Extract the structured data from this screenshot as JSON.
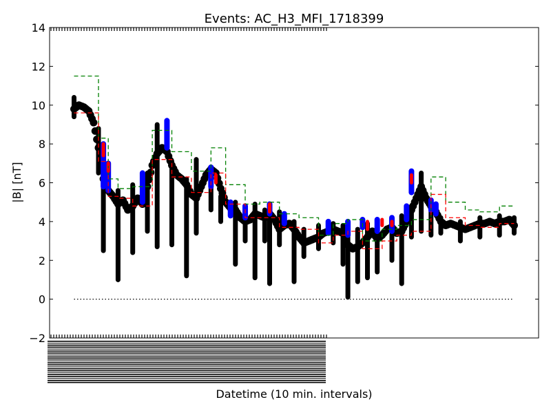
{
  "chart_data": {
    "type": "scatter",
    "title": "Events: AC_H3_MFI_1718399",
    "xlabel": "Datetime (10 min. intervals)",
    "ylabel": "|B| [nT]",
    "ylim": [
      -2,
      14
    ],
    "yticks": [
      -2,
      0,
      2,
      4,
      6,
      8,
      10,
      12,
      14
    ],
    "ytick_labels": [
      "−2",
      "0",
      "2",
      "4",
      "6",
      "8",
      "10",
      "12",
      "14"
    ],
    "xlim": [
      0,
      100
    ],
    "grid": false,
    "colors": {
      "data": "#000000",
      "highlight_blue": "#0000ff",
      "highlight_red": "#ff0000",
      "mean": "#ff0000",
      "threshold": "#008000",
      "zero": "#000000"
    },
    "series": [
      {
        "points": [
          [
            5,
            9.8
          ],
          [
            6,
            10.0
          ],
          [
            7,
            9.9
          ],
          [
            8,
            9.7
          ],
          [
            9,
            9.1
          ],
          [
            10,
            7.8
          ],
          [
            11,
            6.2
          ],
          [
            12,
            5.6
          ],
          [
            13,
            5.3
          ],
          [
            14,
            4.9
          ],
          [
            15,
            5.1
          ],
          [
            16,
            4.6
          ],
          [
            17,
            4.8
          ],
          [
            18,
            5.2
          ],
          [
            19,
            4.9
          ],
          [
            20,
            5.8
          ],
          [
            21,
            6.9
          ],
          [
            22,
            7.5
          ],
          [
            23,
            7.8
          ],
          [
            24,
            7.6
          ],
          [
            25,
            6.9
          ],
          [
            26,
            6.4
          ],
          [
            27,
            6.2
          ],
          [
            28,
            5.9
          ],
          [
            29,
            5.4
          ],
          [
            30,
            5.2
          ],
          [
            31,
            5.8
          ],
          [
            32,
            6.4
          ],
          [
            33,
            6.7
          ],
          [
            34,
            6.5
          ],
          [
            35,
            5.7
          ],
          [
            36,
            5.0
          ],
          [
            37,
            4.7
          ],
          [
            38,
            4.6
          ],
          [
            39,
            4.2
          ],
          [
            40,
            4.0
          ],
          [
            41,
            4.1
          ],
          [
            42,
            4.4
          ],
          [
            43,
            4.3
          ],
          [
            44,
            4.2
          ],
          [
            45,
            4.4
          ],
          [
            46,
            4.1
          ],
          [
            47,
            3.6
          ],
          [
            48,
            3.8
          ],
          [
            49,
            3.9
          ],
          [
            50,
            3.6
          ],
          [
            51,
            3.2
          ],
          [
            52,
            2.9
          ],
          [
            53,
            3.0
          ],
          [
            54,
            3.1
          ],
          [
            55,
            3.2
          ],
          [
            56,
            3.4
          ],
          [
            57,
            3.5
          ],
          [
            58,
            3.6
          ],
          [
            59,
            3.5
          ],
          [
            60,
            3.4
          ],
          [
            61,
            2.8
          ],
          [
            62,
            2.6
          ],
          [
            63,
            2.7
          ],
          [
            64,
            2.9
          ],
          [
            65,
            3.2
          ],
          [
            66,
            3.5
          ],
          [
            67,
            3.1
          ],
          [
            68,
            3.3
          ],
          [
            69,
            3.6
          ],
          [
            70,
            3.7
          ],
          [
            71,
            3.4
          ],
          [
            72,
            3.5
          ],
          [
            73,
            4.0
          ],
          [
            74,
            4.6
          ],
          [
            75,
            5.2
          ],
          [
            76,
            5.8
          ],
          [
            77,
            5.2
          ],
          [
            78,
            4.8
          ],
          [
            79,
            4.5
          ],
          [
            80,
            4.0
          ],
          [
            81,
            3.8
          ],
          [
            82,
            3.9
          ],
          [
            83,
            3.8
          ],
          [
            84,
            3.7
          ],
          [
            85,
            3.6
          ],
          [
            86,
            3.7
          ],
          [
            87,
            3.8
          ],
          [
            88,
            3.9
          ],
          [
            89,
            3.9
          ],
          [
            90,
            4.0
          ],
          [
            91,
            3.9
          ],
          [
            92,
            4.0
          ],
          [
            93,
            4.0
          ],
          [
            94,
            4.1
          ],
          [
            95,
            3.8
          ]
        ],
        "spread": [
          [
            5,
            9.4,
            10.4
          ],
          [
            10,
            6.5,
            8.8
          ],
          [
            11,
            2.5,
            7.2
          ],
          [
            14,
            1.0,
            5.6
          ],
          [
            17,
            2.4,
            5.9
          ],
          [
            20,
            3.5,
            6.5
          ],
          [
            22,
            2.7,
            9.0
          ],
          [
            25,
            2.8,
            7.1
          ],
          [
            28,
            1.2,
            6.2
          ],
          [
            30,
            3.4,
            7.2
          ],
          [
            33,
            4.6,
            6.8
          ],
          [
            35,
            4.0,
            5.3
          ],
          [
            38,
            1.8,
            5.0
          ],
          [
            40,
            3.0,
            4.8
          ],
          [
            42,
            1.1,
            4.9
          ],
          [
            44,
            3.0,
            4.6
          ],
          [
            45,
            0.8,
            4.8
          ],
          [
            47,
            2.8,
            4.5
          ],
          [
            50,
            0.9,
            4.0
          ],
          [
            52,
            2.2,
            3.6
          ],
          [
            55,
            2.6,
            3.8
          ],
          [
            58,
            2.9,
            3.9
          ],
          [
            60,
            1.8,
            3.8
          ],
          [
            61,
            0.1,
            3.9
          ],
          [
            63,
            0.9,
            3.6
          ],
          [
            65,
            1.1,
            3.9
          ],
          [
            67,
            1.4,
            3.8
          ],
          [
            70,
            2.0,
            4.1
          ],
          [
            72,
            0.8,
            4.3
          ],
          [
            74,
            3.2,
            4.8
          ],
          [
            76,
            3.5,
            6.5
          ],
          [
            78,
            3.3,
            5.0
          ],
          [
            80,
            3.4,
            4.2
          ],
          [
            84,
            3.0,
            4.0
          ],
          [
            88,
            3.2,
            4.2
          ],
          [
            92,
            3.3,
            4.3
          ],
          [
            95,
            3.4,
            4.2
          ]
        ]
      },
      {
        "highlight_blue_ranges": [
          [
            11,
            5.8,
            8.0
          ],
          [
            12,
            5.6,
            7.0
          ],
          [
            19,
            5.0,
            6.5
          ],
          [
            24,
            7.8,
            9.2
          ],
          [
            33,
            5.8,
            6.8
          ],
          [
            37,
            4.3,
            5.0
          ],
          [
            40,
            4.2,
            4.8
          ],
          [
            45,
            4.4,
            4.9
          ],
          [
            48,
            3.9,
            4.4
          ],
          [
            57,
            3.4,
            4.0
          ],
          [
            61,
            3.3,
            4.0
          ],
          [
            64,
            3.7,
            4.1
          ],
          [
            67,
            3.5,
            4.1
          ],
          [
            70,
            3.5,
            4.2
          ],
          [
            73,
            4.1,
            4.8
          ],
          [
            74,
            5.5,
            6.6
          ],
          [
            78,
            4.6,
            5.1
          ],
          [
            79,
            4.4,
            4.9
          ]
        ],
        "highlight_red_ranges": [
          [
            11,
            7.4,
            8.0
          ],
          [
            12,
            6.6,
            7.0
          ],
          [
            34,
            6.0,
            6.4
          ],
          [
            45,
            4.5,
            4.9
          ],
          [
            65,
            3.6,
            4.0
          ],
          [
            68,
            3.8,
            4.1
          ],
          [
            70,
            3.8,
            4.0
          ],
          [
            74,
            6.0,
            6.4
          ]
        ]
      }
    ],
    "mean_steps": [
      [
        5,
        10,
        9.6
      ],
      [
        10,
        12,
        7.1
      ],
      [
        12,
        14,
        5.3
      ],
      [
        14,
        17,
        5.2
      ],
      [
        17,
        21,
        4.8
      ],
      [
        21,
        25,
        7.2
      ],
      [
        25,
        29,
        6.3
      ],
      [
        29,
        33,
        5.5
      ],
      [
        33,
        36,
        6.5
      ],
      [
        36,
        40,
        4.9
      ],
      [
        40,
        43,
        4.2
      ],
      [
        43,
        47,
        4.2
      ],
      [
        47,
        51,
        3.7
      ],
      [
        51,
        55,
        3.6
      ],
      [
        55,
        58,
        2.9
      ],
      [
        58,
        61,
        3.3
      ],
      [
        61,
        64,
        3.5
      ],
      [
        64,
        68,
        2.6
      ],
      [
        68,
        71,
        3.0
      ],
      [
        71,
        74,
        3.3
      ],
      [
        74,
        78,
        3.5
      ],
      [
        78,
        81,
        5.4
      ],
      [
        81,
        85,
        4.2
      ],
      [
        85,
        88,
        3.8
      ],
      [
        88,
        92,
        3.7
      ],
      [
        92,
        95,
        3.9
      ]
    ],
    "threshold_steps": [
      [
        5,
        10,
        11.5
      ],
      [
        10,
        12,
        8.3
      ],
      [
        12,
        14,
        6.2
      ],
      [
        14,
        17,
        5.7
      ],
      [
        17,
        21,
        5.8
      ],
      [
        21,
        25,
        8.7
      ],
      [
        25,
        29,
        7.6
      ],
      [
        29,
        33,
        6.6
      ],
      [
        33,
        36,
        7.8
      ],
      [
        36,
        40,
        5.9
      ],
      [
        40,
        43,
        4.9
      ],
      [
        43,
        47,
        5.0
      ],
      [
        47,
        51,
        4.4
      ],
      [
        51,
        55,
        4.2
      ],
      [
        55,
        58,
        3.3
      ],
      [
        58,
        61,
        3.9
      ],
      [
        61,
        64,
        4.1
      ],
      [
        64,
        68,
        3.0
      ],
      [
        68,
        71,
        3.6
      ],
      [
        71,
        74,
        3.8
      ],
      [
        74,
        78,
        4.1
      ],
      [
        78,
        81,
        6.3
      ],
      [
        81,
        85,
        5.0
      ],
      [
        85,
        88,
        4.6
      ],
      [
        88,
        92,
        4.5
      ],
      [
        92,
        95,
        4.8
      ]
    ],
    "zero_line": {
      "x_start": 5,
      "x_end": 95,
      "y": 0
    }
  }
}
